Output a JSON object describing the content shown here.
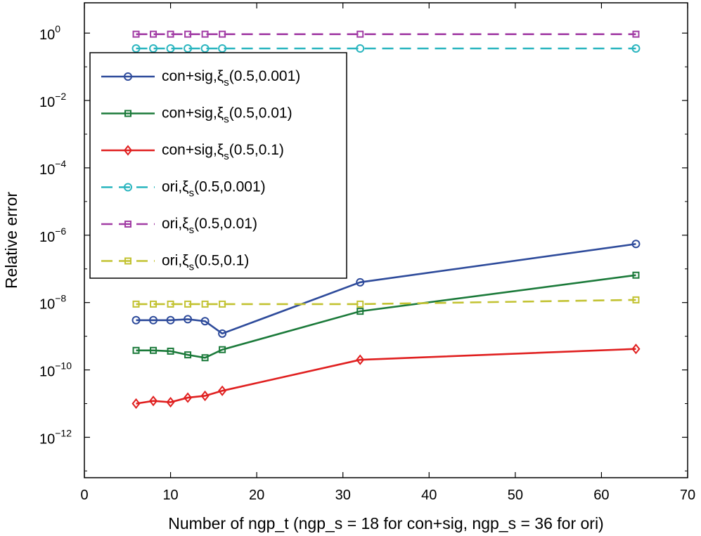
{
  "chart_data": {
    "type": "line",
    "yscale": "log",
    "xlabel": "Number of ngp_t (ngp_s = 18 for con+sig, ngp_s = 36 for ori)",
    "ylabel": "Relative error",
    "xlim": [
      0,
      70
    ],
    "ylim_exp": [
      -13.2,
      0.9
    ],
    "xticks": [
      {
        "value": 0,
        "label": "0"
      },
      {
        "value": 10,
        "label": "10"
      },
      {
        "value": 20,
        "label": "20"
      },
      {
        "value": 30,
        "label": "30"
      },
      {
        "value": 40,
        "label": "40"
      },
      {
        "value": 50,
        "label": "50"
      },
      {
        "value": 60,
        "label": "60"
      },
      {
        "value": 70,
        "label": "70"
      }
    ],
    "yticks": [
      {
        "exp": 0,
        "base": "10",
        "sup": "0"
      },
      {
        "exp": -2,
        "base": "10",
        "sup": "−2"
      },
      {
        "exp": -4,
        "base": "10",
        "sup": "−4"
      },
      {
        "exp": -6,
        "base": "10",
        "sup": "−6"
      },
      {
        "exp": -8,
        "base": "10",
        "sup": "−8"
      },
      {
        "exp": -10,
        "base": "10",
        "sup": "−10"
      },
      {
        "exp": -12,
        "base": "10",
        "sup": "−12"
      }
    ],
    "x": [
      6,
      8,
      10,
      12,
      14,
      16,
      32,
      64
    ],
    "legend_position": "upper-left",
    "series": [
      {
        "name_main": "con+sig,ξ",
        "name_sub": "s",
        "name_tail": "(0.5,0.001)",
        "color": "#2e4b9b",
        "marker": "circle",
        "dashed": false,
        "y": [
          3e-09,
          3e-09,
          3e-09,
          3.2e-09,
          2.8e-09,
          1.2e-09,
          4e-08,
          5.5e-07
        ]
      },
      {
        "name_main": "con+sig,ξ",
        "name_sub": "s",
        "name_tail": "(0.5,0.01)",
        "color": "#1b7a3a",
        "marker": "square",
        "dashed": false,
        "y": [
          3.8e-10,
          3.8e-10,
          3.6e-10,
          2.8e-10,
          2.3e-10,
          4e-10,
          5.5e-09,
          6.5e-08
        ]
      },
      {
        "name_main": "con+sig,ξ",
        "name_sub": "s",
        "name_tail": "(0.5,0.1)",
        "color": "#e02020",
        "marker": "diamond",
        "dashed": false,
        "y": [
          1e-11,
          1.2e-11,
          1.1e-11,
          1.5e-11,
          1.7e-11,
          2.4e-11,
          2e-10,
          4.2e-10
        ]
      },
      {
        "name_main": "ori,ξ",
        "name_sub": "s",
        "name_tail": "(0.5,0.001)",
        "color": "#2ab5bf",
        "marker": "circle",
        "dashed": true,
        "y": [
          0.35,
          0.35,
          0.35,
          0.35,
          0.35,
          0.35,
          0.35,
          0.35
        ]
      },
      {
        "name_main": "ori,ξ",
        "name_sub": "s",
        "name_tail": "(0.5,0.01)",
        "color": "#a23da5",
        "marker": "square",
        "dashed": true,
        "y": [
          0.93,
          0.93,
          0.93,
          0.93,
          0.93,
          0.93,
          0.93,
          0.93
        ]
      },
      {
        "name_main": "ori,ξ",
        "name_sub": "s",
        "name_tail": "(0.5,0.1)",
        "color": "#c2c231",
        "marker": "square",
        "dashed": true,
        "y": [
          9e-09,
          9e-09,
          9e-09,
          9e-09,
          9e-09,
          9e-09,
          9e-09,
          1.2e-08
        ]
      }
    ]
  }
}
